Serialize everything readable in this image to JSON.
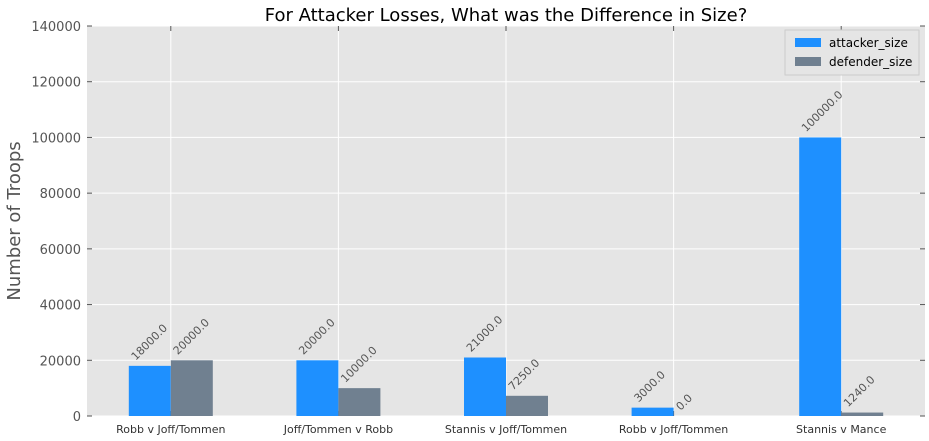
{
  "chart_data": {
    "type": "bar",
    "title": "For Attacker Losses, What was the Difference in Size?",
    "xlabel": "",
    "ylabel": "Number of Troops",
    "ylim": [
      0,
      140000
    ],
    "yticks": [
      0,
      20000,
      40000,
      60000,
      80000,
      100000,
      120000,
      140000
    ],
    "categories": [
      "Robb v Joff/Tommen",
      "Joff/Tommen v Robb",
      "Stannis v Joff/Tommen",
      "Robb v Joff/Tommen",
      "Stannis v Mance"
    ],
    "series": [
      {
        "name": "attacker_size",
        "color": "#1e90ff",
        "values": [
          18000,
          20000,
          21000,
          3000,
          100000
        ],
        "labels": [
          "18000.0",
          "20000.0",
          "21000.0",
          "3000.0",
          "100000.0"
        ]
      },
      {
        "name": "defender_size",
        "color": "#708090",
        "values": [
          20000,
          10000,
          7250,
          0,
          1240
        ],
        "labels": [
          "20000.0",
          "10000.0",
          "7250.0",
          "0.0",
          "1240.0"
        ]
      }
    ],
    "grid": true,
    "legend": "top-right",
    "plot_background": "#e5e5e5",
    "grid_color": "#ffffff"
  }
}
